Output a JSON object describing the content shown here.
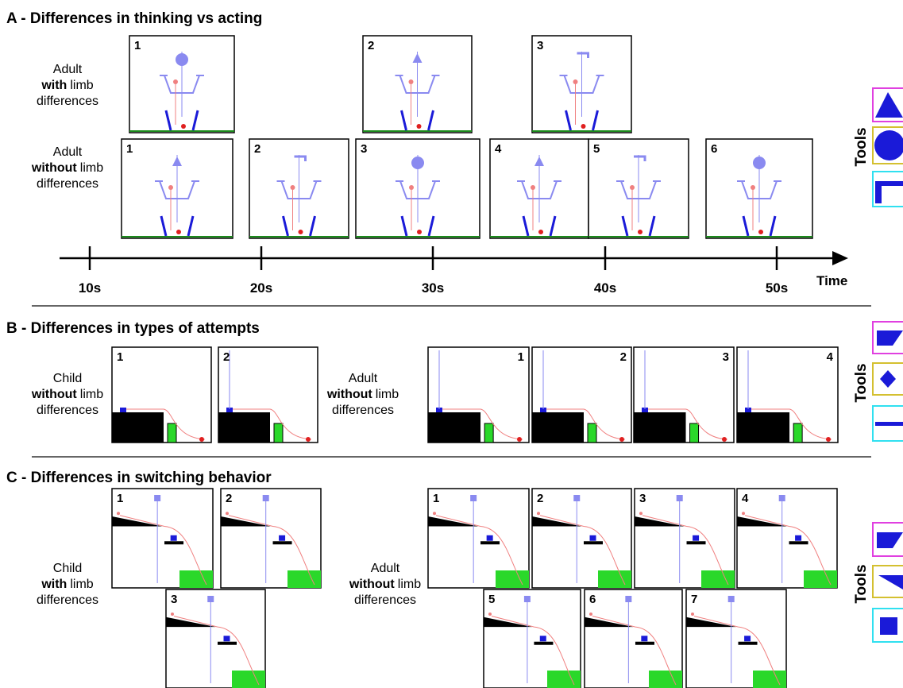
{
  "figure": {
    "sections": [
      {
        "title": "A - Differences in thinking vs acting",
        "tools_label": "Tools",
        "rows": [
          {
            "label": [
              [
                {
                  "text": "Adult"
                }
              ],
              [
                {
                  "text": "with",
                  "bold": true
                },
                {
                  "text": "limb"
                }
              ],
              [
                {
                  "text": "differences"
                }
              ]
            ],
            "frames": [
              "1",
              "2",
              "3"
            ]
          },
          {
            "label": [
              [
                {
                  "text": "Adult"
                }
              ],
              [
                {
                  "text": "without",
                  "bold": true
                },
                {
                  "text": "limb"
                }
              ],
              [
                {
                  "text": "differences"
                }
              ]
            ],
            "frames": [
              "1",
              "2",
              "3",
              "4",
              "5",
              "6"
            ]
          }
        ],
        "timeline": {
          "ticks": [
            "10s",
            "20s",
            "30s",
            "40s",
            "50s"
          ],
          "label": "Time"
        }
      },
      {
        "title": "B - Differences in types of attempts",
        "tools_label": "Tools",
        "rows": [
          {
            "label": [
              [
                {
                  "text": "Child"
                }
              ],
              [
                {
                  "text": "without",
                  "bold": true
                },
                {
                  "text": "limb"
                }
              ],
              [
                {
                  "text": "differences"
                }
              ]
            ],
            "frames": [
              "1",
              "2"
            ]
          },
          {
            "label": [
              [
                {
                  "text": "Adult"
                }
              ],
              [
                {
                  "text": "without",
                  "bold": true
                },
                {
                  "text": "limb"
                }
              ],
              [
                {
                  "text": "differences"
                }
              ]
            ],
            "frames": [
              "1",
              "2",
              "3",
              "4"
            ]
          }
        ]
      },
      {
        "title": "C - Differences in switching behavior",
        "tools_label": "Tools",
        "rows": [
          {
            "label": [
              [
                {
                  "text": "Child"
                }
              ],
              [
                {
                  "text": "with",
                  "bold": true
                },
                {
                  "text": "limb"
                }
              ],
              [
                {
                  "text": "differences"
                }
              ]
            ],
            "frames": [
              "1",
              "2",
              "3"
            ]
          },
          {
            "label": [
              [
                {
                  "text": "Adult"
                }
              ],
              [
                {
                  "text": "without",
                  "bold": true
                },
                {
                  "text": "limb"
                }
              ],
              [
                {
                  "text": "differences"
                }
              ]
            ],
            "frames": [
              "1",
              "2",
              "3",
              "4",
              "5",
              "6",
              "7"
            ]
          }
        ]
      }
    ]
  }
}
